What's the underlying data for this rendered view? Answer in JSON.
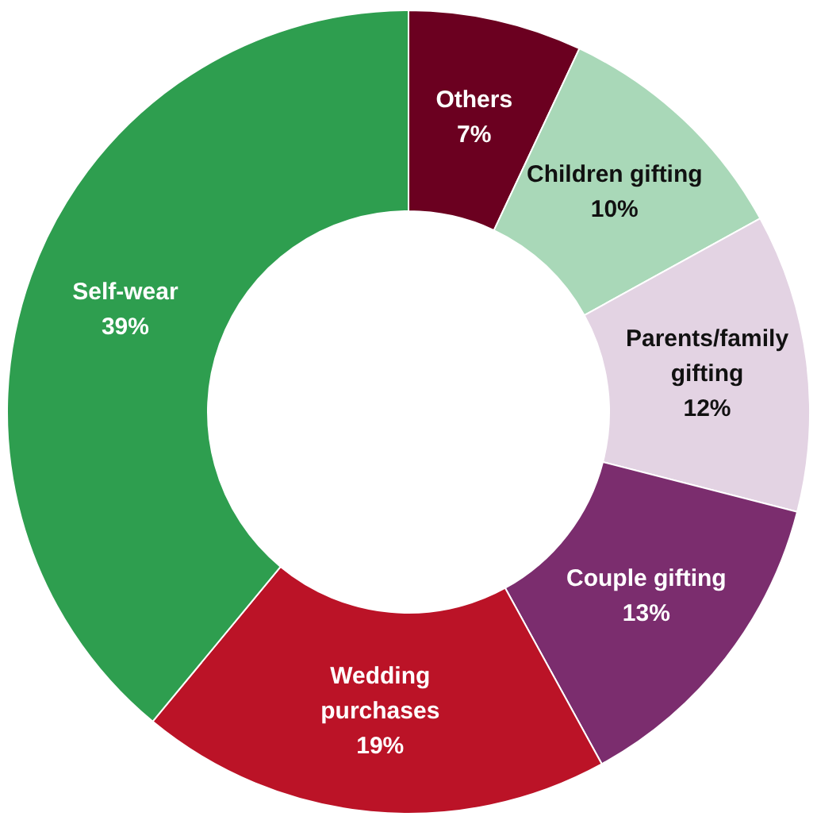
{
  "chart_data": {
    "type": "donut",
    "categories": [
      "Others",
      "Children gifting",
      "Parents/family gifting",
      "Couple gifting",
      "Wedding purchases",
      "Self-wear"
    ],
    "values": [
      7,
      10,
      12,
      13,
      19,
      39
    ],
    "value_labels": [
      "7%",
      "10%",
      "12%",
      "13%",
      "19%",
      "39%"
    ],
    "colors": [
      "#6b0020",
      "#a9d8b8",
      "#e3d3e3",
      "#7b2d6e",
      "#bb1327",
      "#2e9e4f"
    ],
    "legend": false
  }
}
